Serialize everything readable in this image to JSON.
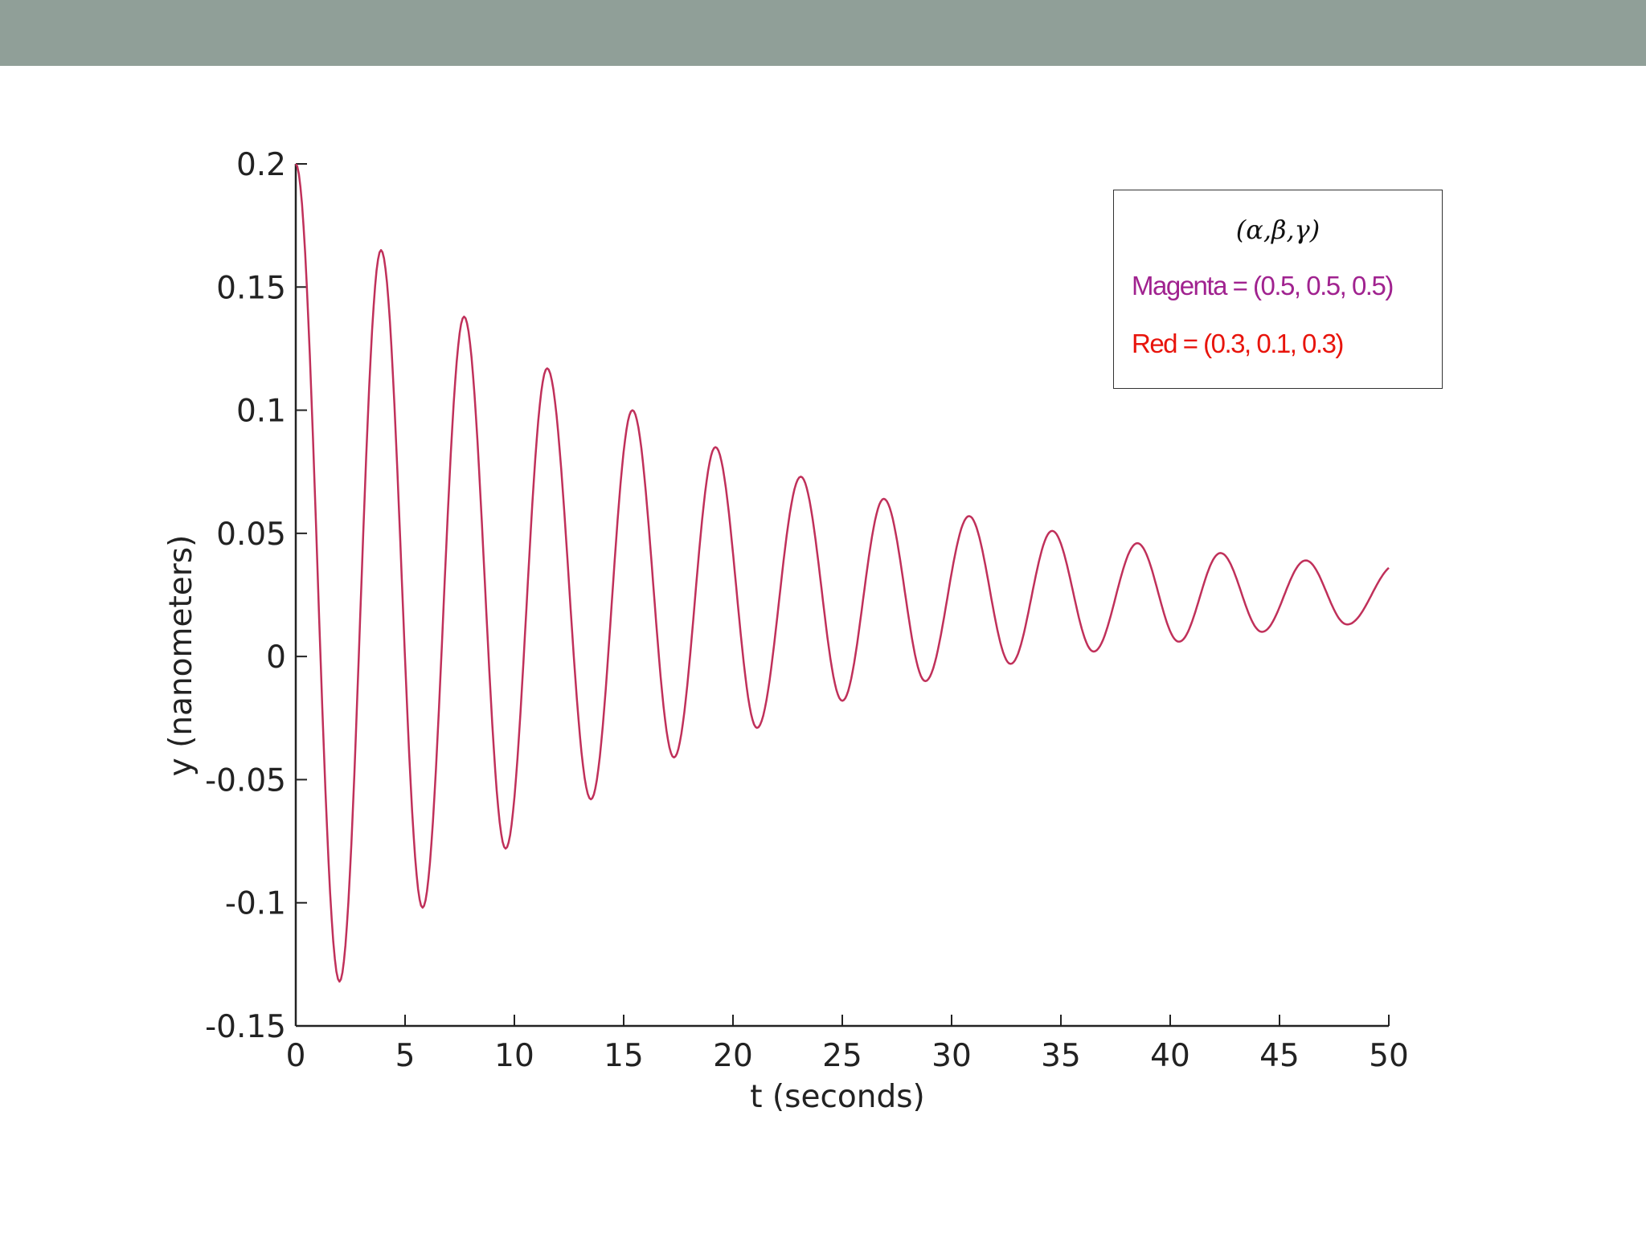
{
  "chart_data": {
    "type": "line",
    "xlabel": "t (seconds)",
    "ylabel": "y (nanometers)",
    "xlim": [
      0,
      50
    ],
    "ylim": [
      -0.15,
      0.2
    ],
    "x_ticks": [
      0,
      5,
      10,
      15,
      20,
      25,
      30,
      35,
      40,
      45,
      50
    ],
    "x_tick_labels": [
      "0",
      "5",
      "10",
      "15",
      "20",
      "25",
      "30",
      "35",
      "40",
      "45",
      "50"
    ],
    "y_ticks": [
      0.2,
      0.15,
      0.1,
      0.05,
      0,
      -0.05,
      -0.1,
      -0.15
    ],
    "y_tick_labels": [
      "0.2",
      "0.15",
      "0.1",
      "0.05",
      "0",
      "-0.05",
      "-0.1",
      "-0.15"
    ],
    "grid": false,
    "legend_placement": "top-right",
    "legend_header": "(α,β,γ)",
    "legend_entries": [
      {
        "label": "Magenta = (0.5, 0.5, 0.5)",
        "color": "#a0228f"
      },
      {
        "label": "Red = (0.3, 0.1, 0.3)",
        "color": "#e8140c"
      }
    ],
    "series": [
      {
        "color": "#c0305a",
        "x": [
          0,
          2.0,
          3.9,
          5.8,
          7.7,
          9.6,
          11.5,
          13.5,
          15.4,
          17.3,
          19.2,
          21.1,
          23.1,
          25.0,
          26.9,
          28.8,
          30.8,
          32.7,
          34.6,
          36.5,
          38.5,
          40.4,
          42.3,
          44.2,
          46.2,
          48.1,
          50
        ],
        "y": [
          0.2,
          -0.132,
          0.165,
          -0.102,
          0.138,
          -0.078,
          0.117,
          -0.058,
          0.1,
          -0.041,
          0.085,
          -0.029,
          0.073,
          -0.018,
          0.064,
          -0.01,
          0.057,
          -0.003,
          0.051,
          0.002,
          0.046,
          0.006,
          0.042,
          0.01,
          0.039,
          0.013,
          0.036
        ]
      }
    ]
  }
}
